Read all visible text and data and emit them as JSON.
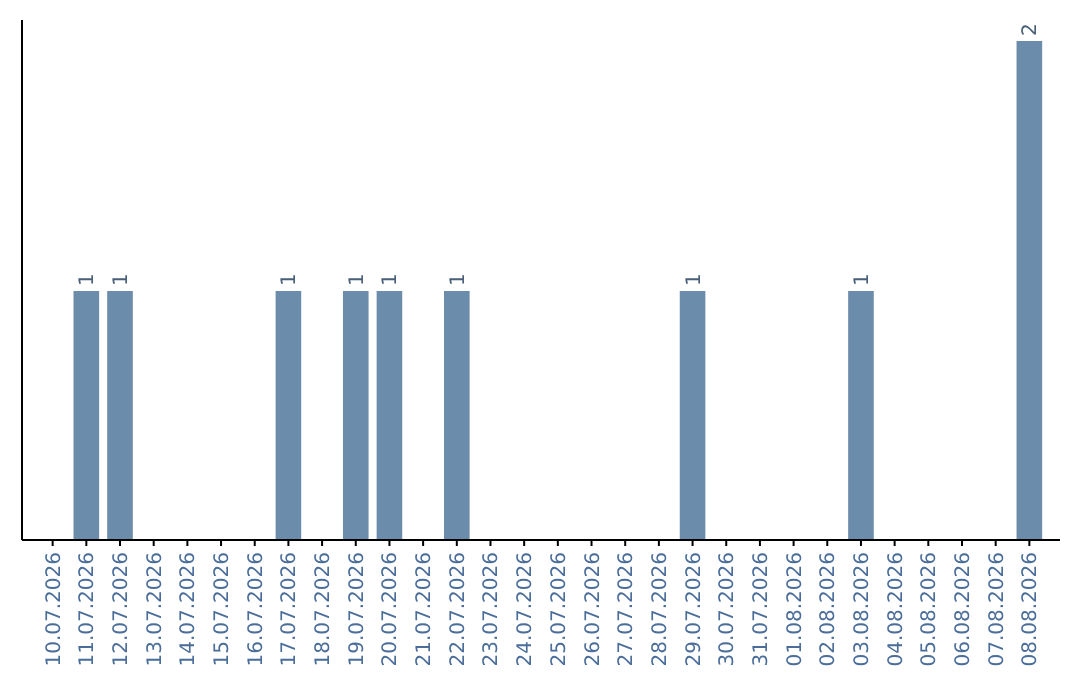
{
  "chart_data": {
    "type": "bar",
    "categories": [
      "10.07.2026",
      "11.07.2026",
      "12.07.2026",
      "13.07.2026",
      "14.07.2026",
      "15.07.2026",
      "16.07.2026",
      "17.07.2026",
      "18.07.2026",
      "19.07.2026",
      "20.07.2026",
      "21.07.2026",
      "22.07.2026",
      "23.07.2026",
      "24.07.2026",
      "25.07.2026",
      "26.07.2026",
      "27.07.2026",
      "28.07.2026",
      "29.07.2026",
      "30.07.2026",
      "31.07.2026",
      "01.08.2026",
      "02.08.2026",
      "03.08.2026",
      "04.08.2026",
      "05.08.2026",
      "06.08.2026",
      "07.08.2026",
      "08.08.2026"
    ],
    "values": [
      0,
      1,
      1,
      0,
      0,
      0,
      0,
      1,
      0,
      1,
      1,
      0,
      1,
      0,
      0,
      0,
      0,
      0,
      0,
      1,
      0,
      0,
      0,
      0,
      1,
      0,
      0,
      0,
      0,
      2
    ],
    "value_labels": [
      null,
      "1",
      "1",
      null,
      null,
      null,
      null,
      "1",
      null,
      "1",
      "1",
      null,
      "1",
      null,
      null,
      null,
      null,
      null,
      null,
      "1",
      null,
      null,
      null,
      null,
      "1",
      null,
      null,
      null,
      null,
      "2"
    ],
    "color": "#6b8caa"
  }
}
